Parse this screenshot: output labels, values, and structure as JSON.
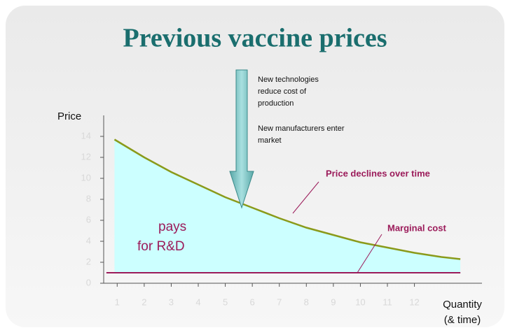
{
  "chart_data": {
    "type": "line",
    "title": "Previous vaccine prices",
    "y_label": "Price",
    "x_label": [
      "Quantity",
      "(& time)"
    ],
    "xlim": [
      0.5,
      14.5
    ],
    "ylim": [
      0,
      14
    ],
    "xticks": [
      1,
      2,
      3,
      4,
      5,
      6,
      7,
      8,
      9,
      10,
      11,
      12
    ],
    "yticks": [
      0,
      2,
      4,
      6,
      8,
      10,
      12,
      14
    ],
    "fill_color": "#ccffff",
    "series": [
      {
        "name": "Price",
        "color": "#8a9a1a",
        "x": [
          0.9,
          2,
          3,
          4,
          5,
          6,
          7,
          8,
          9,
          10,
          11,
          12,
          13,
          13.7
        ],
        "values": [
          13.7,
          12.0,
          10.6,
          9.4,
          8.2,
          7.2,
          6.2,
          5.3,
          4.6,
          3.9,
          3.4,
          2.9,
          2.5,
          2.3
        ]
      },
      {
        "name": "Marginal cost",
        "color": "#9b1b5a",
        "x": [
          0.6,
          13.7
        ],
        "values": [
          1,
          1
        ]
      }
    ],
    "annotations": {
      "area_text": [
        "pays",
        "for R&D"
      ],
      "arrow_text_1": [
        "New technologies",
        "reduce cost of",
        "production"
      ],
      "arrow_text_2": [
        "New manufacturers enter",
        "market"
      ],
      "price_decline": "Price declines over time",
      "marginal_cost": "Marginal cost"
    }
  }
}
